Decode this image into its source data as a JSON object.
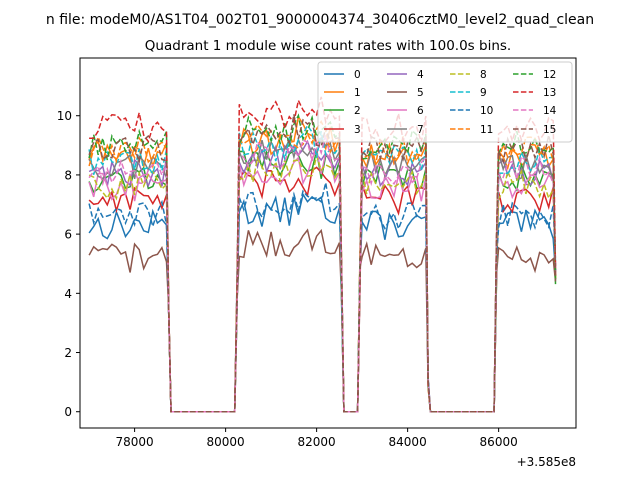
{
  "figure": {
    "suptitle": "n file: modeM0/AS1T04_002T01_9000004374_30406cztM0_level2_quad_clean",
    "offset_label": "+3.585e8"
  },
  "chart_data": {
    "type": "line",
    "title": "Quadrant 1 module wise count rates with 100.0s bins.",
    "xlabel": "",
    "ylabel": "",
    "x_offset": 358500000,
    "xlim": [
      76800,
      87700
    ],
    "ylim": [
      -0.55,
      11.95
    ],
    "x_ticks": [
      78000,
      80000,
      82000,
      84000,
      86000
    ],
    "x_tick_labels": [
      "78000",
      "80000",
      "82000",
      "84000",
      "86000"
    ],
    "y_ticks": [
      0,
      2,
      4,
      6,
      8,
      10
    ],
    "y_tick_labels": [
      "0",
      "2",
      "4",
      "6",
      "8",
      "10"
    ],
    "grid": false,
    "legend_position": "top-right",
    "legend_columns": 4,
    "bin_seconds": 100.0,
    "segments": [
      {
        "start": 77000,
        "end": 78700,
        "active": true
      },
      {
        "start": 78800,
        "end": 80200,
        "active": false
      },
      {
        "start": 80300,
        "end": 82500,
        "active": true
      },
      {
        "start": 82600,
        "end": 82900,
        "active": false
      },
      {
        "start": 83000,
        "end": 84400,
        "active": true
      },
      {
        "start": 84500,
        "end": 85900,
        "active": false
      },
      {
        "start": 86000,
        "end": 87200,
        "active": true
      }
    ],
    "edge_drops": [
      {
        "x": 78800,
        "levels": [
          3.3,
          3.6
        ]
      },
      {
        "x": 80300,
        "levels": [
          3.4,
          4.6
        ]
      },
      {
        "x": 82600,
        "levels": [
          3.5,
          4.8
        ]
      },
      {
        "x": 83000,
        "levels": [
          4.0,
          5.2
        ]
      },
      {
        "x": 84500,
        "levels": [
          0.8,
          1.2
        ]
      },
      {
        "x": 86000,
        "levels": [
          4.2,
          5.8
        ]
      }
    ],
    "series": [
      {
        "name": "0",
        "color": "#1f77b4",
        "dash": "solid",
        "base": 6.3
      },
      {
        "name": "1",
        "color": "#ff7f0e",
        "dash": "solid",
        "base": 8.7
      },
      {
        "name": "2",
        "color": "#2ca02c",
        "dash": "solid",
        "base": 7.9
      },
      {
        "name": "3",
        "color": "#d62728",
        "dash": "solid",
        "base": 7.2
      },
      {
        "name": "4",
        "color": "#9467bd",
        "dash": "solid",
        "base": 8.1
      },
      {
        "name": "5",
        "color": "#8c564b",
        "dash": "solid",
        "base": 5.2
      },
      {
        "name": "6",
        "color": "#e377c2",
        "dash": "solid",
        "base": 7.6
      },
      {
        "name": "7",
        "color": "#7f7f7f",
        "dash": "solid",
        "base": 8.3
      },
      {
        "name": "8",
        "color": "#bcbd22",
        "dash": "dashed",
        "base": 7.7
      },
      {
        "name": "9",
        "color": "#17becf",
        "dash": "dashed",
        "base": 8.5
      },
      {
        "name": "10",
        "color": "#1f77b4",
        "dash": "dashed",
        "base": 6.6
      },
      {
        "name": "11",
        "color": "#ff7f0e",
        "dash": "dashed",
        "base": 8.8
      },
      {
        "name": "12",
        "color": "#2ca02c",
        "dash": "dashed",
        "base": 9.0
      },
      {
        "name": "13",
        "color": "#d62728",
        "dash": "dashed",
        "base": 9.6
      },
      {
        "name": "14",
        "color": "#e377c2",
        "dash": "dashed",
        "base": 8.2
      },
      {
        "name": "15",
        "color": "#8c564b",
        "dash": "dashed",
        "base": 8.9
      }
    ]
  }
}
